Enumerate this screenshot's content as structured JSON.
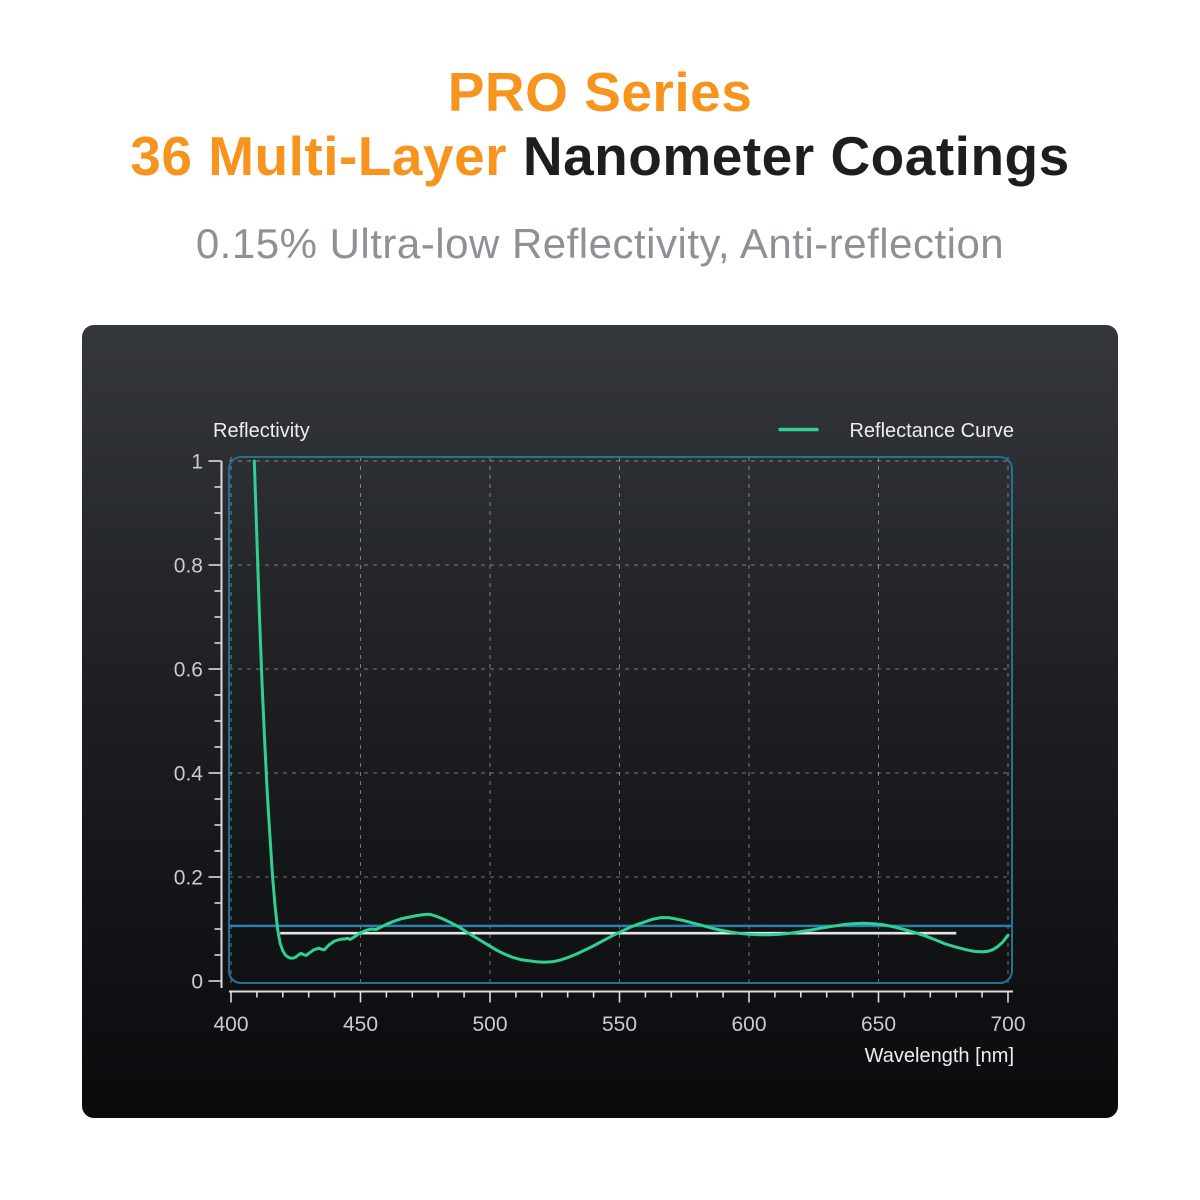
{
  "header": {
    "title_line1": "PRO Series",
    "title_line2_highlight": "36 Multi-Layer",
    "title_line2_rest": "Nanometer Coatings",
    "subtitle": "0.15% Ultra-low Reflectivity, Anti-reflection"
  },
  "colors": {
    "accent_orange": "#F7941E",
    "title_dark": "#1E1E20",
    "subtitle_gray": "#8D9094",
    "panel_top": "#34373B",
    "panel_bottom": "#0A0B0D",
    "plot_border_blue": "#27708F",
    "threshold_line_blue": "#2B7FAD",
    "mean_line_white": "#E3E5E6",
    "curve_green": "#2ED191",
    "grid_gray": "rgba(255,255,255,0.42)",
    "axis_gray": "#D9DBDC"
  },
  "chart_data": {
    "type": "line",
    "title": "Reflectivity",
    "xlabel": "Wavelength [nm]",
    "ylabel": "",
    "legend_position": "top-right",
    "grid": "dashed",
    "xlim": [
      400,
      700
    ],
    "ylim": [
      0,
      1
    ],
    "x_ticks": [
      400,
      450,
      500,
      550,
      600,
      650,
      700
    ],
    "x_tick_labels": [
      "400",
      "450",
      "500",
      "550",
      "600",
      "650",
      "700"
    ],
    "x_minor_step": 10,
    "y_ticks": [
      0,
      0.2,
      0.4,
      0.6,
      0.8,
      1
    ],
    "y_tick_labels": [
      "0",
      "0.2",
      "0.4",
      "0.6",
      "0.8",
      "1"
    ],
    "y_minor_step": 0.05,
    "legend": [
      {
        "label": "Reflectance Curve",
        "color": "#2ED191"
      }
    ],
    "reference_lines": [
      {
        "name": "threshold-line",
        "value": 0.106,
        "color": "#2B7FAD",
        "x_start": 400,
        "x_end": 700,
        "full_width": true
      },
      {
        "name": "mean-line",
        "value": 0.092,
        "color": "#E3E5E6",
        "x_start": 419,
        "x_end": 680,
        "full_width": false
      }
    ],
    "series": [
      {
        "name": "Reflectance Curve",
        "color": "#2ED191",
        "points": [
          [
            409,
            1.0
          ],
          [
            410,
            0.85
          ],
          [
            411,
            0.7
          ],
          [
            412,
            0.57
          ],
          [
            413,
            0.46
          ],
          [
            414,
            0.36
          ],
          [
            415,
            0.28
          ],
          [
            416,
            0.205
          ],
          [
            417,
            0.145
          ],
          [
            418,
            0.1
          ],
          [
            419,
            0.072
          ],
          [
            420,
            0.058
          ],
          [
            421,
            0.05
          ],
          [
            422,
            0.046
          ],
          [
            423,
            0.044
          ],
          [
            424,
            0.044
          ],
          [
            425,
            0.046
          ],
          [
            426,
            0.05
          ],
          [
            427,
            0.053
          ],
          [
            428,
            0.051
          ],
          [
            429,
            0.049
          ],
          [
            430,
            0.053
          ],
          [
            432,
            0.06
          ],
          [
            434,
            0.063
          ],
          [
            435,
            0.061
          ],
          [
            436,
            0.06
          ],
          [
            438,
            0.07
          ],
          [
            440,
            0.077
          ],
          [
            442,
            0.08
          ],
          [
            444,
            0.081
          ],
          [
            445,
            0.082
          ],
          [
            446,
            0.08
          ],
          [
            448,
            0.086
          ],
          [
            450,
            0.093
          ],
          [
            452,
            0.097
          ],
          [
            454,
            0.1
          ],
          [
            456,
            0.099
          ],
          [
            458,
            0.104
          ],
          [
            460,
            0.109
          ],
          [
            463,
            0.115
          ],
          [
            466,
            0.12
          ],
          [
            469,
            0.123
          ],
          [
            472,
            0.126
          ],
          [
            475,
            0.128
          ],
          [
            477,
            0.128
          ],
          [
            479,
            0.125
          ],
          [
            482,
            0.119
          ],
          [
            485,
            0.112
          ],
          [
            488,
            0.104
          ],
          [
            491,
            0.094
          ],
          [
            494,
            0.085
          ],
          [
            497,
            0.076
          ],
          [
            500,
            0.067
          ],
          [
            503,
            0.058
          ],
          [
            506,
            0.051
          ],
          [
            509,
            0.045
          ],
          [
            512,
            0.041
          ],
          [
            515,
            0.039
          ],
          [
            518,
            0.037
          ],
          [
            521,
            0.036
          ],
          [
            524,
            0.037
          ],
          [
            527,
            0.04
          ],
          [
            530,
            0.045
          ],
          [
            533,
            0.051
          ],
          [
            536,
            0.058
          ],
          [
            539,
            0.065
          ],
          [
            542,
            0.073
          ],
          [
            545,
            0.081
          ],
          [
            548,
            0.089
          ],
          [
            551,
            0.096
          ],
          [
            554,
            0.103
          ],
          [
            557,
            0.109
          ],
          [
            560,
            0.114
          ],
          [
            563,
            0.119
          ],
          [
            566,
            0.122
          ],
          [
            569,
            0.122
          ],
          [
            572,
            0.119
          ],
          [
            575,
            0.116
          ],
          [
            578,
            0.112
          ],
          [
            581,
            0.108
          ],
          [
            584,
            0.104
          ],
          [
            587,
            0.1
          ],
          [
            590,
            0.097
          ],
          [
            593,
            0.094
          ],
          [
            596,
            0.092
          ],
          [
            600,
            0.09
          ],
          [
            604,
            0.089
          ],
          [
            608,
            0.089
          ],
          [
            612,
            0.09
          ],
          [
            616,
            0.092
          ],
          [
            620,
            0.095
          ],
          [
            624,
            0.098
          ],
          [
            628,
            0.102
          ],
          [
            632,
            0.105
          ],
          [
            636,
            0.108
          ],
          [
            640,
            0.11
          ],
          [
            644,
            0.111
          ],
          [
            648,
            0.11
          ],
          [
            652,
            0.108
          ],
          [
            656,
            0.104
          ],
          [
            660,
            0.099
          ],
          [
            664,
            0.093
          ],
          [
            668,
            0.087
          ],
          [
            672,
            0.079
          ],
          [
            676,
            0.071
          ],
          [
            680,
            0.065
          ],
          [
            684,
            0.06
          ],
          [
            687,
            0.057
          ],
          [
            690,
            0.056
          ],
          [
            692,
            0.057
          ],
          [
            694,
            0.06
          ],
          [
            696,
            0.066
          ],
          [
            698,
            0.075
          ],
          [
            700,
            0.088
          ]
        ]
      }
    ]
  }
}
